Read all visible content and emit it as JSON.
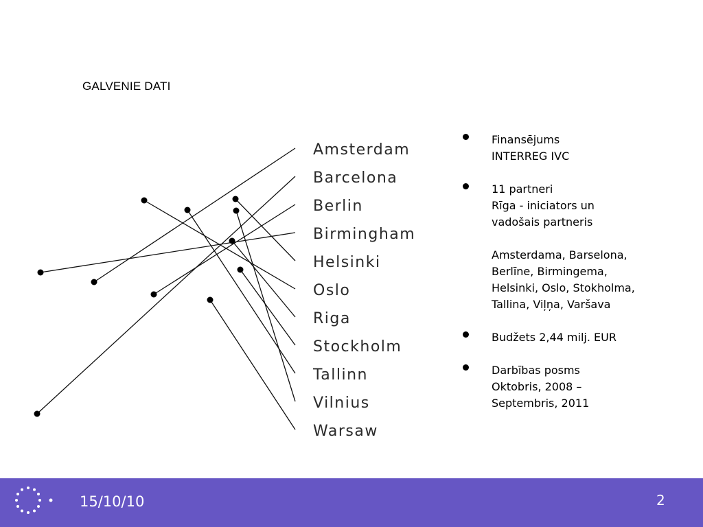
{
  "title": "GALVENIE DATI",
  "cities": [
    "Amsterdam",
    "Barcelona",
    "Berlin",
    "Birmingham",
    "Helsinki",
    "Oslo",
    "Riga",
    "Stockholm",
    "Tallinn",
    "Vilnius",
    "Warsaw"
  ],
  "bullets": [
    {
      "lines": [
        "Finansējums",
        "INTERREG IVC"
      ]
    },
    {
      "lines": [
        "11 partneri",
        "Rīga - iniciators un",
        "vadošais partneris"
      ]
    },
    {
      "lines": [
        "Amsterdama, Barselona,",
        "Berlīne, Birmingema,",
        "Helsinki, Oslo, Stokholma,",
        "Tallina, Viļņa, Varšava"
      ]
    },
    {
      "lines": [
        "Budžets 2,44 milj. EUR"
      ]
    },
    {
      "lines": [
        "Darbības posms",
        "Oktobris, 2008 –",
        "Septembris, 2011"
      ]
    }
  ],
  "footer": {
    "date": "15/10/10",
    "page": "2",
    "bar_color": "#6656c4",
    "logo": "eu-stars-icon"
  }
}
